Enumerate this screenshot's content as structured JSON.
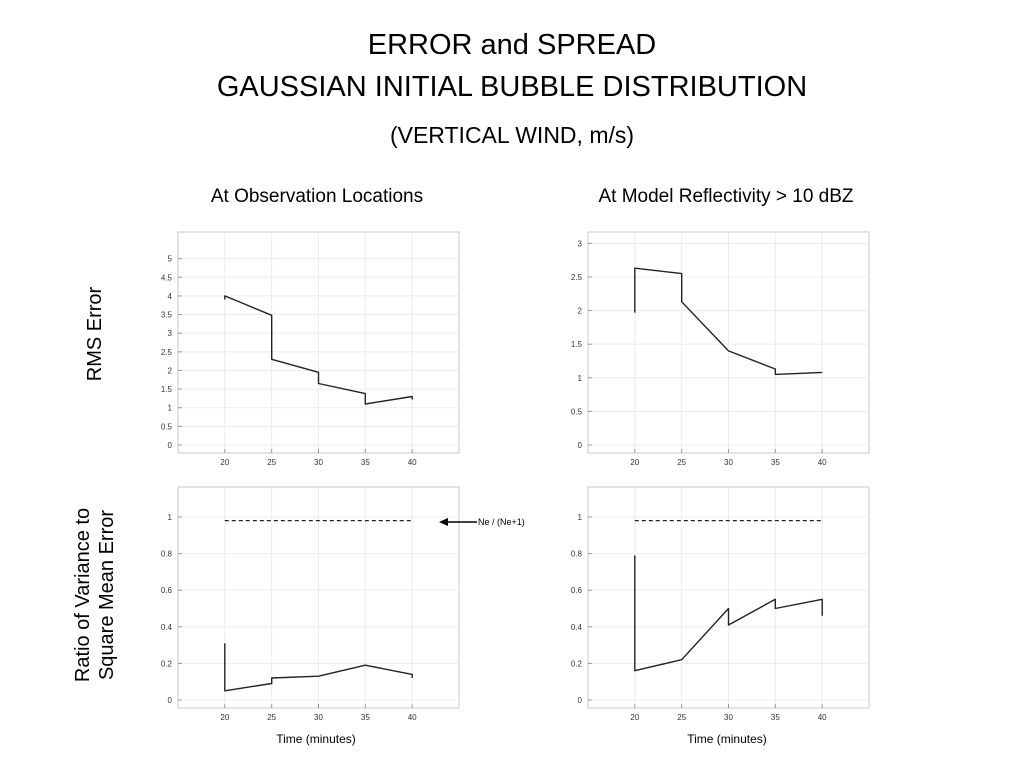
{
  "title_line1": "ERROR and SPREAD",
  "title_line2": "GAUSSIAN INITIAL BUBBLE DISTRIBUTION",
  "subtitle": "(VERTICAL WIND, m/s)",
  "col_left": "At Observation Locations",
  "col_right": "At Model Reflectivity > 10 dBZ",
  "row_top_label": "RMS Error",
  "row_bottom_label_1": "Ratio of Variance to",
  "row_bottom_label_2": "Square Mean Error",
  "xlabel_left": "Time (minutes)",
  "xlabel_right": "Time (minutes)",
  "annotation": "Ne / (Ne+1)",
  "chart_data": [
    {
      "id": "rms_obs",
      "type": "line",
      "xlim": [
        15,
        45
      ],
      "ylim": [
        0,
        5.5
      ],
      "xticks": [
        "20",
        "25",
        "30",
        "35",
        "40"
      ],
      "yticks": [
        "0",
        "0.5",
        "1",
        "1.5",
        "2",
        "2.5",
        "3",
        "3.5",
        "4",
        "4.5",
        "5"
      ],
      "grid": true,
      "series": [
        {
          "points": [
            [
              20,
              3.9
            ],
            [
              20,
              4.0
            ],
            [
              25,
              3.48
            ],
            [
              25,
              2.3
            ],
            [
              30,
              1.95
            ],
            [
              30,
              1.65
            ],
            [
              35,
              1.38
            ],
            [
              35,
              1.1
            ],
            [
              40,
              1.3
            ],
            [
              40,
              1.22
            ]
          ]
        }
      ]
    },
    {
      "id": "rms_refl",
      "type": "line",
      "xlim": [
        15,
        45
      ],
      "ylim": [
        0,
        3.05
      ],
      "xticks": [
        "20",
        "25",
        "30",
        "35",
        "40"
      ],
      "yticks": [
        "0",
        "0.5",
        "1",
        "1.5",
        "2",
        "2.5",
        "3"
      ],
      "grid": true,
      "series": [
        {
          "points": [
            [
              20,
              1.97
            ],
            [
              20,
              2.63
            ],
            [
              25,
              2.55
            ],
            [
              25,
              2.13
            ],
            [
              30,
              1.4
            ],
            [
              35,
              1.13
            ],
            [
              35,
              1.05
            ],
            [
              40,
              1.08
            ]
          ]
        }
      ]
    },
    {
      "id": "ratio_obs",
      "type": "line",
      "xlim": [
        15,
        45
      ],
      "ylim": [
        0,
        1.12
      ],
      "xticks": [
        "20",
        "25",
        "30",
        "35",
        "40"
      ],
      "yticks": [
        "0",
        "0.2",
        "0.4",
        "0.6",
        "0.8",
        "1"
      ],
      "grid": true,
      "series": [
        {
          "points": [
            [
              20,
              0.31
            ],
            [
              20,
              0.05
            ],
            [
              25,
              0.09
            ],
            [
              25,
              0.12
            ],
            [
              30,
              0.13
            ],
            [
              35,
              0.19
            ],
            [
              40,
              0.14
            ],
            [
              40,
              0.12
            ]
          ]
        },
        {
          "dashed": true,
          "points": [
            [
              20,
              0.98
            ],
            [
              40,
              0.98
            ]
          ]
        }
      ]
    },
    {
      "id": "ratio_refl",
      "type": "line",
      "xlim": [
        15,
        45
      ],
      "ylim": [
        0,
        1.12
      ],
      "xticks": [
        "20",
        "25",
        "30",
        "35",
        "40"
      ],
      "yticks": [
        "0",
        "0.2",
        "0.4",
        "0.6",
        "0.8",
        "1"
      ],
      "grid": true,
      "series": [
        {
          "points": [
            [
              20,
              0.79
            ],
            [
              20,
              0.16
            ],
            [
              25,
              0.22
            ],
            [
              30,
              0.5
            ],
            [
              30,
              0.41
            ],
            [
              35,
              0.55
            ],
            [
              35,
              0.5
            ],
            [
              40,
              0.55
            ],
            [
              40,
              0.46
            ]
          ]
        },
        {
          "dashed": true,
          "points": [
            [
              20,
              0.98
            ],
            [
              40,
              0.98
            ]
          ]
        }
      ]
    }
  ]
}
